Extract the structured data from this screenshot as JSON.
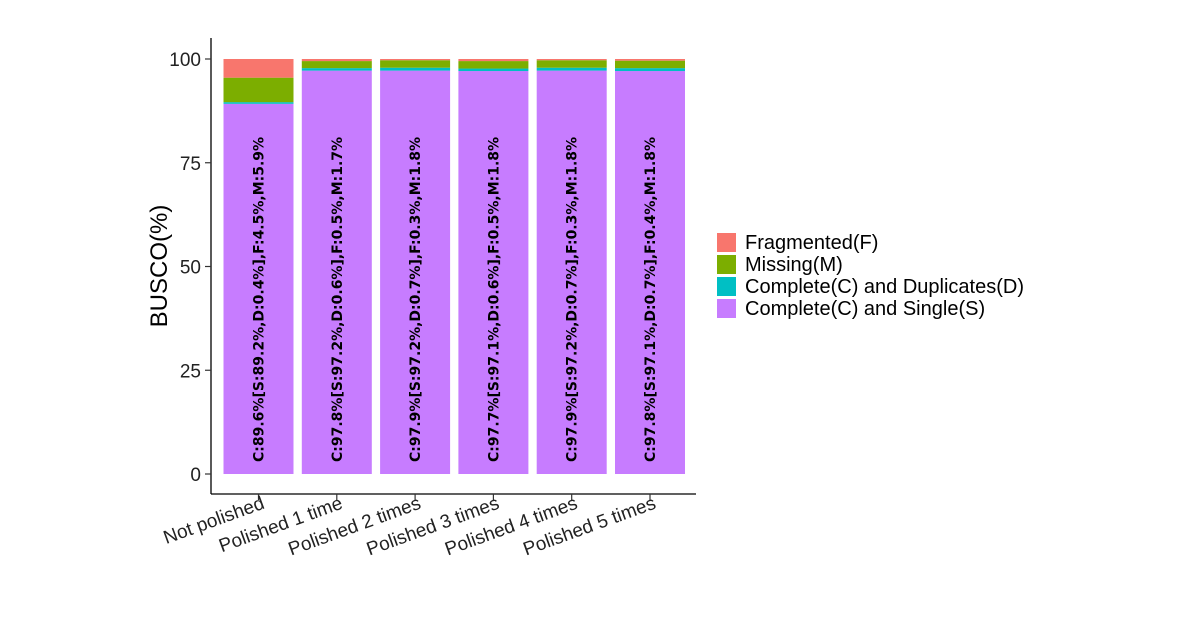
{
  "chart_data": {
    "type": "bar",
    "stacked": true,
    "orientation": "vertical",
    "ylabel": "BUSCO(%)",
    "xlabel": "",
    "title": "",
    "ylim": [
      0,
      100
    ],
    "yticks": [
      0,
      25,
      50,
      75,
      100
    ],
    "grid": false,
    "legend_position": "right",
    "categories": [
      "Not polished",
      "Polished 1 time",
      "Polished 2 times",
      "Polished 3 times",
      "Polished 4 times",
      "Polished 5 times"
    ],
    "series": [
      {
        "name": "Complete(C) and Single(S)",
        "color": "#c77cff",
        "values": [
          89.2,
          97.2,
          97.2,
          97.1,
          97.2,
          97.1
        ]
      },
      {
        "name": "Complete(C) and Duplicates(D)",
        "color": "#00bfc4",
        "values": [
          0.4,
          0.6,
          0.7,
          0.6,
          0.7,
          0.7
        ]
      },
      {
        "name": "Missing(M)",
        "color": "#7cae00",
        "values": [
          5.9,
          1.7,
          1.8,
          1.8,
          1.8,
          1.8
        ]
      },
      {
        "name": "Fragmented(F)",
        "color": "#f8766d",
        "values": [
          4.5,
          0.5,
          0.3,
          0.5,
          0.3,
          0.4
        ]
      }
    ],
    "legend_order": [
      "Fragmented(F)",
      "Missing(M)",
      "Complete(C) and Duplicates(D)",
      "Complete(C) and Single(S)"
    ],
    "bar_labels": [
      "C:89.6%[S:89.2%,D:0.4%],F:4.5%,M:5.9%",
      "C:97.8%[S:97.2%,D:0.6%],F:0.5%,M:1.7%",
      "C:97.9%[S:97.2%,D:0.7%],F:0.3%,M:1.8%",
      "C:97.7%[S:97.1%,D:0.6%],F:0.5%,M:1.8%",
      "C:97.9%[S:97.2%,D:0.7%],F:0.3%,M:1.8%",
      "C:97.8%[S:97.1%,D:0.7%],F:0.4%,M:1.8%"
    ]
  }
}
